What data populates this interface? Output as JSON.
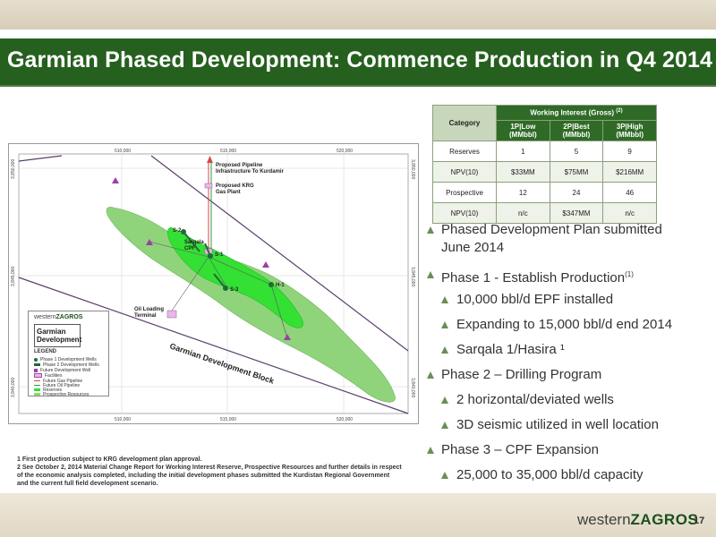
{
  "slide": {
    "title": "Garmian Phased Development: Commence Production in Q4 2014",
    "page_number": "17",
    "logo": {
      "part1": "western",
      "part2": "ZAGROS"
    }
  },
  "table": {
    "category_header": "Category",
    "group_header": "Working Interest (Gross)",
    "group_footnote": "(2)",
    "columns": [
      {
        "line1": "1P|Low",
        "line2": "(MMbbl)"
      },
      {
        "line1": "2P|Best",
        "line2": "(MMbbl)"
      },
      {
        "line1": "3P|High",
        "line2": "(MMbbl)"
      }
    ],
    "rows": [
      {
        "label": "Reserves",
        "values": [
          "1",
          "5",
          "9"
        ]
      },
      {
        "label": "NPV(10)",
        "values": [
          "$33MM",
          "$75MM",
          "$216MM"
        ]
      },
      {
        "label": "Prospective",
        "values": [
          "12",
          "24",
          "46"
        ]
      },
      {
        "label": "NPV(10)",
        "values": [
          "n/c",
          "$347MM",
          "n/c"
        ]
      }
    ]
  },
  "bullets": [
    {
      "level": 1,
      "line1": "Phased Development Plan submitted",
      "line2": "June 2014"
    },
    {
      "level": 1,
      "text": "Phase 1 - Establish Production",
      "sup": "(1)"
    },
    {
      "level": 2,
      "text": "10,000 bbl/d EPF installed"
    },
    {
      "level": 2,
      "text": "Expanding to 15,000 bbl/d end 2014"
    },
    {
      "level": 2,
      "text": "Sarqala 1/Hasira ¹"
    },
    {
      "level": 1,
      "text": "Phase 2 – Drilling Program"
    },
    {
      "level": 2,
      "text": "2 horizontal/deviated wells"
    },
    {
      "level": 2,
      "text": "3D seismic utilized in well location"
    },
    {
      "level": 1,
      "text": "Phase 3 – CPF Expansion"
    },
    {
      "level": 2,
      "text": "25,000 to 35,000 bbl/d capacity"
    }
  ],
  "footnotes": [
    "1  First production subject to KRG development plan approval.",
    "2  See October 2, 2014 Material Change Report for Working Interest Reserve, Prospective Resources and further details in respect of the economic analysis completed, including the initial  development phases submitted the Kurdistan Regional Government and the current full field development scenario."
  ],
  "map": {
    "grid_top": [
      "510,000",
      "515,000",
      "520,000"
    ],
    "grid_bottom": [
      "510,000",
      "515,000",
      "520,000"
    ],
    "grid_left": [
      "3,850,000",
      "3,845,000",
      "3,840,000"
    ],
    "grid_right": [
      "3,850,000",
      "3,845,000",
      "3,840,000"
    ],
    "labels": {
      "pipeline": "Proposed Pipeline",
      "pipeline2": "Infrastructure To Kurdamir",
      "krg1": "Proposed KRG",
      "krg2": "Gas Plant",
      "sarqala1": "Sarqala",
      "sarqala2": "CPF",
      "oil1": "Oil Loading",
      "oil2": "Terminal",
      "block": "Garmian Development Block",
      "s1": "S-1",
      "s2": "S-2",
      "s3": "S-3",
      "h1": "H-1"
    },
    "legend": {
      "brand1": "western",
      "brand2": "ZAGROS",
      "title1": "Garmian",
      "title2": "Development",
      "header": "LEGEND",
      "items": [
        "Phase 1 Development Wells",
        "Phase 2 Development Wells",
        "Future Development Well",
        "Facilities",
        "Future Gas Pipeline",
        "Future Oil Pipeline",
        "Reserves",
        "Prospective Resources"
      ]
    }
  },
  "colors": {
    "title_bar": "#26601f",
    "reserves_green": "#33e033",
    "prospective_green": "#8fd47a",
    "block_line": "#5a3f6b",
    "future_well": "#9b3fa5"
  }
}
